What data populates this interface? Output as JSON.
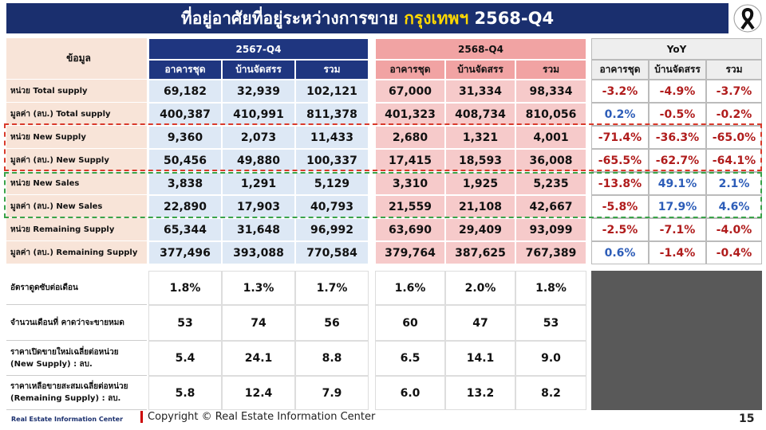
{
  "header": {
    "title_prefix": "ที่อยู่อาศัยที่อยู่ระหว่างการขาย",
    "title_city": "กรุงเทพฯ",
    "title_period": "2568-Q4"
  },
  "table": {
    "label_header": "ข้อมูล",
    "groups": [
      "2567-Q4",
      "2568-Q4",
      "YoY"
    ],
    "subheaders": [
      [
        "อาคารชุด",
        "บ้านจัดสรร",
        "รวม"
      ],
      [
        "อาคารชุด",
        "บ้านจัดสรร",
        "รวม"
      ],
      [
        "อาคารชุด",
        "บ้านจัดสรร",
        "รวม"
      ]
    ],
    "rows": [
      [
        "หน่วย Total supply",
        "69,182",
        "32,939",
        "102,121",
        "67,000",
        "31,334",
        "98,334",
        "-3.2%",
        "-4.9%",
        "-3.7%"
      ],
      [
        "มูลค่า (ลบ.) Total supply",
        "400,387",
        "410,991",
        "811,378",
        "401,323",
        "408,734",
        "810,056",
        "0.2%",
        "-0.5%",
        "-0.2%"
      ],
      [
        "หน่วย New Supply",
        "9,360",
        "2,073",
        "11,433",
        "2,680",
        "1,321",
        "4,001",
        "-71.4%",
        "-36.3%",
        "-65.0%"
      ],
      [
        "มูลค่า (ลบ.) New Supply",
        "50,456",
        "49,880",
        "100,337",
        "17,415",
        "18,593",
        "36,008",
        "-65.5%",
        "-62.7%",
        "-64.1%"
      ],
      [
        "หน่วย New Sales",
        "3,838",
        "1,291",
        "5,129",
        "3,310",
        "1,925",
        "5,235",
        "-13.8%",
        "49.1%",
        "2.1%"
      ],
      [
        "มูลค่า (ลบ.) New Sales",
        "22,890",
        "17,903",
        "40,793",
        "21,559",
        "21,108",
        "42,667",
        "-5.8%",
        "17.9%",
        "4.6%"
      ],
      [
        "หน่วย Remaining Supply",
        "65,344",
        "31,648",
        "96,992",
        "63,690",
        "29,409",
        "93,099",
        "-2.5%",
        "-7.1%",
        "-4.0%"
      ],
      [
        "มูลค่า (ลบ.) Remaining Supply",
        "377,496",
        "393,088",
        "770,584",
        "379,764",
        "387,625",
        "767,389",
        "0.6%",
        "-1.4%",
        "-0.4%"
      ]
    ],
    "summary_rows": [
      [
        "อัตราดูดซับต่อเดือน",
        "1.8%",
        "1.3%",
        "1.7%",
        "1.6%",
        "2.0%",
        "1.8%"
      ],
      [
        "จำนวนเดือนที่ คาดว่าจะขายหมด",
        "53",
        "74",
        "56",
        "60",
        "47",
        "53"
      ],
      [
        "ราคาเปิดขายใหม่เฉลี่ยต่อหน่วย (New Supply) : ลบ.",
        "5.4",
        "24.1",
        "8.8",
        "6.5",
        "14.1",
        "9.0"
      ],
      [
        "ราคาเหลือขายสะสมเฉลี่ยต่อหน่วย (Remaining Supply) : ลบ.",
        "5.8",
        "12.4",
        "7.9",
        "6.0",
        "13.2",
        "8.2"
      ]
    ]
  },
  "footer": {
    "logo_text": "Real Estate Information Center",
    "copyright": "Copyright © Real Estate Information Center",
    "page": "15"
  }
}
